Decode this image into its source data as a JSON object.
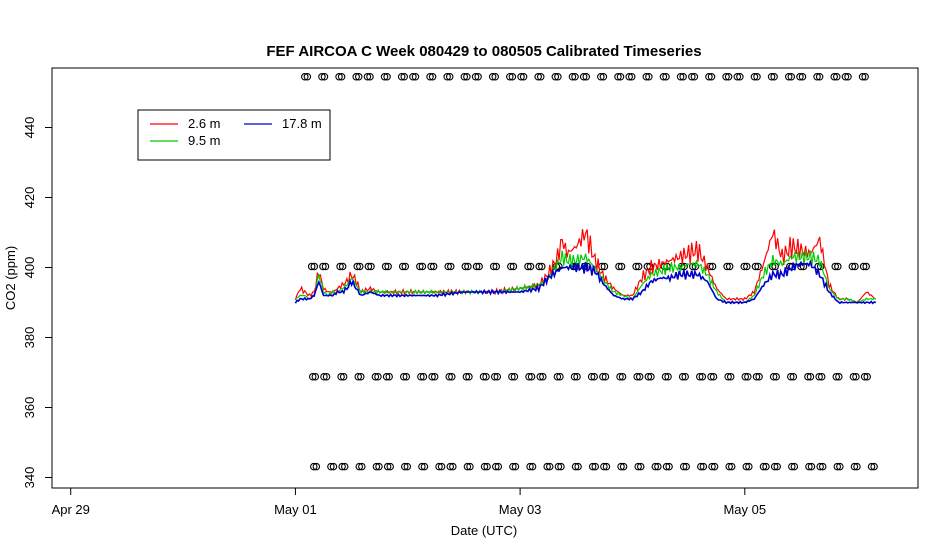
{
  "chart_data": {
    "type": "line",
    "title": "FEF AIRCOA C  Week 080429 to 080505  Calibrated Timeseries",
    "xlabel": "Date (UTC)",
    "ylabel": "CO2 (ppm)",
    "x_range": [
      "2008-04-28T20:00",
      "2008-05-06T13:00"
    ],
    "ylim": [
      337,
      457
    ],
    "x_ticks": [
      {
        "label": "Apr 29",
        "date": "2008-04-29"
      },
      {
        "label": "May 01",
        "date": "2008-05-01"
      },
      {
        "label": "May 03",
        "date": "2008-05-03"
      },
      {
        "label": "May 05",
        "date": "2008-05-05"
      }
    ],
    "y_ticks": [
      340,
      360,
      380,
      400,
      420,
      440
    ],
    "legend": {
      "position": "top-left",
      "entries": [
        {
          "name": "2.6 m",
          "color": "#ff0000"
        },
        {
          "name": "9.5 m",
          "color": "#00cc00"
        },
        {
          "name": "17.8 m",
          "color": "#0000cc"
        }
      ]
    },
    "series": [
      {
        "name": "2.6 m",
        "color": "#ff0000",
        "points": [
          [
            "2008-05-01T00:00",
            391
          ],
          [
            "2008-05-01T01:00",
            394
          ],
          [
            "2008-05-01T02:00",
            393
          ],
          [
            "2008-05-01T03:00",
            392
          ],
          [
            "2008-05-01T04:00",
            393
          ],
          [
            "2008-05-01T05:00",
            399
          ],
          [
            "2008-05-01T06:00",
            394
          ],
          [
            "2008-05-01T07:00",
            393
          ],
          [
            "2008-05-01T08:00",
            393
          ],
          [
            "2008-05-01T09:00",
            394
          ],
          [
            "2008-05-01T10:00",
            395
          ],
          [
            "2008-05-01T11:00",
            396
          ],
          [
            "2008-05-01T12:00",
            398
          ],
          [
            "2008-05-01T13:00",
            396
          ],
          [
            "2008-05-01T14:00",
            393
          ],
          [
            "2008-05-01T16:00",
            394
          ],
          [
            "2008-05-01T18:00",
            393
          ],
          [
            "2008-05-02T00:00",
            393
          ],
          [
            "2008-05-02T06:00",
            393
          ],
          [
            "2008-05-02T12:00",
            393
          ],
          [
            "2008-05-02T18:00",
            393
          ],
          [
            "2008-05-03T00:00",
            394
          ],
          [
            "2008-05-03T04:00",
            395
          ],
          [
            "2008-05-03T06:00",
            398
          ],
          [
            "2008-05-03T08:00",
            403
          ],
          [
            "2008-05-03T09:00",
            408
          ],
          [
            "2008-05-03T10:00",
            404
          ],
          [
            "2008-05-03T12:00",
            406
          ],
          [
            "2008-05-03T14:00",
            410
          ],
          [
            "2008-05-03T16:00",
            402
          ],
          [
            "2008-05-03T18:00",
            397
          ],
          [
            "2008-05-03T20:00",
            394
          ],
          [
            "2008-05-03T22:00",
            392
          ],
          [
            "2008-05-04T00:00",
            392
          ],
          [
            "2008-05-04T02:00",
            397
          ],
          [
            "2008-05-04T04:00",
            400
          ],
          [
            "2008-05-04T06:00",
            401
          ],
          [
            "2008-05-04T08:00",
            402
          ],
          [
            "2008-05-04T10:00",
            403
          ],
          [
            "2008-05-04T12:00",
            404
          ],
          [
            "2008-05-04T14:00",
            405
          ],
          [
            "2008-05-04T16:00",
            400
          ],
          [
            "2008-05-04T18:00",
            394
          ],
          [
            "2008-05-04T20:00",
            391
          ],
          [
            "2008-05-05T00:00",
            391
          ],
          [
            "2008-05-05T02:00",
            393
          ],
          [
            "2008-05-05T04:00",
            401
          ],
          [
            "2008-05-05T06:00",
            410
          ],
          [
            "2008-05-05T08:00",
            403
          ],
          [
            "2008-05-05T10:00",
            406
          ],
          [
            "2008-05-05T12:00",
            405
          ],
          [
            "2008-05-05T14:00",
            404
          ],
          [
            "2008-05-05T16:00",
            408
          ],
          [
            "2008-05-05T18:00",
            395
          ],
          [
            "2008-05-05T20:00",
            391
          ],
          [
            "2008-05-05T22:00",
            391
          ],
          [
            "2008-05-06T00:00",
            390
          ],
          [
            "2008-05-06T02:00",
            393
          ],
          [
            "2008-05-06T04:00",
            391
          ]
        ]
      },
      {
        "name": "9.5 m",
        "color": "#00cc00",
        "points": [
          [
            "2008-05-01T00:00",
            391
          ],
          [
            "2008-05-01T01:00",
            392
          ],
          [
            "2008-05-01T02:00",
            392
          ],
          [
            "2008-05-01T03:00",
            391
          ],
          [
            "2008-05-01T04:00",
            392
          ],
          [
            "2008-05-01T05:00",
            398
          ],
          [
            "2008-05-01T06:00",
            393
          ],
          [
            "2008-05-01T07:00",
            392
          ],
          [
            "2008-05-01T08:00",
            393
          ],
          [
            "2008-05-01T09:00",
            393
          ],
          [
            "2008-05-01T10:00",
            394
          ],
          [
            "2008-05-01T11:00",
            395
          ],
          [
            "2008-05-01T12:00",
            397
          ],
          [
            "2008-05-01T13:00",
            395
          ],
          [
            "2008-05-01T14:00",
            393
          ],
          [
            "2008-05-01T16:00",
            393
          ],
          [
            "2008-05-01T18:00",
            393
          ],
          [
            "2008-05-02T00:00",
            393
          ],
          [
            "2008-05-02T06:00",
            393
          ],
          [
            "2008-05-02T12:00",
            393
          ],
          [
            "2008-05-02T18:00",
            393
          ],
          [
            "2008-05-03T00:00",
            394
          ],
          [
            "2008-05-03T04:00",
            395
          ],
          [
            "2008-05-03T06:00",
            397
          ],
          [
            "2008-05-03T08:00",
            401
          ],
          [
            "2008-05-03T09:00",
            403
          ],
          [
            "2008-05-03T10:00",
            402
          ],
          [
            "2008-05-03T12:00",
            402
          ],
          [
            "2008-05-03T14:00",
            403
          ],
          [
            "2008-05-03T16:00",
            400
          ],
          [
            "2008-05-03T18:00",
            396
          ],
          [
            "2008-05-03T20:00",
            393
          ],
          [
            "2008-05-03T22:00",
            392
          ],
          [
            "2008-05-04T00:00",
            391
          ],
          [
            "2008-05-04T02:00",
            395
          ],
          [
            "2008-05-04T04:00",
            398
          ],
          [
            "2008-05-04T06:00",
            399
          ],
          [
            "2008-05-04T08:00",
            400
          ],
          [
            "2008-05-04T10:00",
            400
          ],
          [
            "2008-05-04T12:00",
            401
          ],
          [
            "2008-05-04T14:00",
            401
          ],
          [
            "2008-05-04T16:00",
            398
          ],
          [
            "2008-05-04T18:00",
            393
          ],
          [
            "2008-05-04T20:00",
            390
          ],
          [
            "2008-05-05T00:00",
            390
          ],
          [
            "2008-05-05T02:00",
            392
          ],
          [
            "2008-05-05T04:00",
            398
          ],
          [
            "2008-05-05T06:00",
            402
          ],
          [
            "2008-05-05T08:00",
            401
          ],
          [
            "2008-05-05T10:00",
            403
          ],
          [
            "2008-05-05T12:00",
            403
          ],
          [
            "2008-05-05T14:00",
            403
          ],
          [
            "2008-05-05T16:00",
            402
          ],
          [
            "2008-05-05T18:00",
            394
          ],
          [
            "2008-05-05T20:00",
            391
          ],
          [
            "2008-05-05T22:00",
            391
          ],
          [
            "2008-05-06T00:00",
            390
          ],
          [
            "2008-05-06T02:00",
            391
          ],
          [
            "2008-05-06T04:00",
            391
          ]
        ]
      },
      {
        "name": "17.8 m",
        "color": "#0000cc",
        "points": [
          [
            "2008-05-01T00:00",
            390
          ],
          [
            "2008-05-01T01:00",
            391
          ],
          [
            "2008-05-01T02:00",
            391
          ],
          [
            "2008-05-01T03:00",
            391
          ],
          [
            "2008-05-01T04:00",
            392
          ],
          [
            "2008-05-01T05:00",
            396
          ],
          [
            "2008-05-01T06:00",
            392
          ],
          [
            "2008-05-01T07:00",
            392
          ],
          [
            "2008-05-01T08:00",
            392
          ],
          [
            "2008-05-01T09:00",
            393
          ],
          [
            "2008-05-01T10:00",
            393
          ],
          [
            "2008-05-01T11:00",
            394
          ],
          [
            "2008-05-01T12:00",
            396
          ],
          [
            "2008-05-01T13:00",
            394
          ],
          [
            "2008-05-01T14:00",
            392
          ],
          [
            "2008-05-01T16:00",
            393
          ],
          [
            "2008-05-01T18:00",
            392
          ],
          [
            "2008-05-02T00:00",
            392
          ],
          [
            "2008-05-02T06:00",
            392
          ],
          [
            "2008-05-02T12:00",
            393
          ],
          [
            "2008-05-02T18:00",
            393
          ],
          [
            "2008-05-03T00:00",
            393
          ],
          [
            "2008-05-03T04:00",
            394
          ],
          [
            "2008-05-03T06:00",
            397
          ],
          [
            "2008-05-03T08:00",
            399
          ],
          [
            "2008-05-03T09:00",
            400
          ],
          [
            "2008-05-03T10:00",
            400
          ],
          [
            "2008-05-03T12:00",
            400
          ],
          [
            "2008-05-03T14:00",
            400
          ],
          [
            "2008-05-03T16:00",
            399
          ],
          [
            "2008-05-03T18:00",
            395
          ],
          [
            "2008-05-03T20:00",
            392
          ],
          [
            "2008-05-03T22:00",
            391
          ],
          [
            "2008-05-04T00:00",
            391
          ],
          [
            "2008-05-04T02:00",
            393
          ],
          [
            "2008-05-04T04:00",
            396
          ],
          [
            "2008-05-04T06:00",
            397
          ],
          [
            "2008-05-04T08:00",
            397
          ],
          [
            "2008-05-04T10:00",
            398
          ],
          [
            "2008-05-04T12:00",
            398
          ],
          [
            "2008-05-04T14:00",
            398
          ],
          [
            "2008-05-04T16:00",
            396
          ],
          [
            "2008-05-04T18:00",
            391
          ],
          [
            "2008-05-04T20:00",
            390
          ],
          [
            "2008-05-05T00:00",
            390
          ],
          [
            "2008-05-05T02:00",
            391
          ],
          [
            "2008-05-05T04:00",
            395
          ],
          [
            "2008-05-05T06:00",
            398
          ],
          [
            "2008-05-05T08:00",
            398
          ],
          [
            "2008-05-05T10:00",
            400
          ],
          [
            "2008-05-05T12:00",
            401
          ],
          [
            "2008-05-05T14:00",
            401
          ],
          [
            "2008-05-05T16:00",
            398
          ],
          [
            "2008-05-05T18:00",
            393
          ],
          [
            "2008-05-05T20:00",
            390
          ],
          [
            "2008-05-05T22:00",
            390
          ],
          [
            "2008-05-06T00:00",
            390
          ],
          [
            "2008-05-06T02:00",
            390
          ],
          [
            "2008-05-06T04:00",
            390
          ]
        ]
      }
    ],
    "calibration_points": {
      "marker": "open-circle",
      "color": "#000000",
      "levels_ppm": [
        454.5,
        400.3,
        368.8,
        343.1
      ],
      "start": "2008-05-01T02:00",
      "end": "2008-05-06T04:00"
    }
  }
}
